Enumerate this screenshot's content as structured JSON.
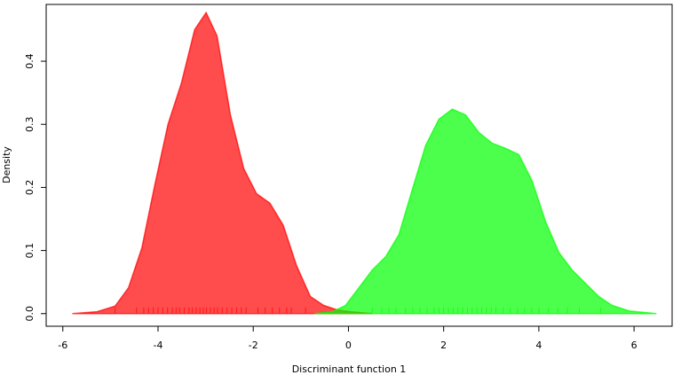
{
  "chart_data": {
    "type": "density",
    "x_label": "Discriminant function 1",
    "y_label": "Density",
    "xlim": [
      -6.35,
      6.8
    ],
    "ylim": [
      -0.02,
      0.49
    ],
    "xticks": [
      -6,
      -4,
      -2,
      0,
      2,
      4,
      6
    ],
    "yticks": [
      {
        "value": 0,
        "label": "0.0"
      },
      0.1,
      0.2,
      0.3,
      0.4
    ],
    "series": [
      {
        "color": "rgba(255,0,0,0.7)",
        "x": [
          -5.8,
          -5.28,
          -4.9,
          -4.62,
          -4.34,
          -4.07,
          -3.79,
          -3.51,
          -3.23,
          -2.99,
          -2.76,
          -2.48,
          -2.2,
          -1.93,
          -1.65,
          -1.37,
          -1.09,
          -0.8,
          -0.52,
          -0.24,
          0.04,
          0.5
        ],
        "values": [
          0,
          0.003,
          0.012,
          0.041,
          0.104,
          0.203,
          0.3,
          0.365,
          0.45,
          0.477,
          0.44,
          0.315,
          0.23,
          0.19,
          0.175,
          0.14,
          0.076,
          0.027,
          0.013,
          0.006,
          0.003,
          0
        ],
        "rug": [
          -4.9,
          -4.45,
          -4.3,
          -4.2,
          -4.1,
          -4.0,
          -3.9,
          -3.8,
          -3.7,
          -3.62,
          -3.55,
          -3.45,
          -3.35,
          -3.28,
          -3.2,
          -3.12,
          -3.05,
          -2.98,
          -2.9,
          -2.82,
          -2.75,
          -2.65,
          -2.55,
          -2.45,
          -2.35,
          -2.25,
          -2.15,
          -1.9,
          -1.75,
          -1.6,
          -1.45,
          -1.3,
          -1.2,
          -0.9
        ]
      },
      {
        "color": "rgba(0,255,0,0.7)",
        "x": [
          -0.71,
          -0.34,
          -0.06,
          0.22,
          0.5,
          0.78,
          1.06,
          1.34,
          1.62,
          1.9,
          2.18,
          2.46,
          2.74,
          3.02,
          3.3,
          3.58,
          3.86,
          4.14,
          4.42,
          4.7,
          4.98,
          5.26,
          5.54,
          5.91,
          6.47
        ],
        "values": [
          0,
          0.003,
          0.013,
          0.041,
          0.069,
          0.09,
          0.125,
          0.196,
          0.266,
          0.308,
          0.324,
          0.315,
          0.287,
          0.27,
          0.262,
          0.252,
          0.21,
          0.146,
          0.097,
          0.069,
          0.048,
          0.027,
          0.013,
          0.004,
          0
        ],
        "rug": [
          0.5,
          0.7,
          0.85,
          1.0,
          1.2,
          1.35,
          1.5,
          1.65,
          1.8,
          1.9,
          2.0,
          2.1,
          2.2,
          2.3,
          2.4,
          2.5,
          2.6,
          2.7,
          2.8,
          2.9,
          3.0,
          3.1,
          3.25,
          3.4,
          3.55,
          3.7,
          3.85,
          4.0,
          4.2,
          4.4,
          4.6,
          4.85,
          5.3
        ]
      }
    ]
  }
}
